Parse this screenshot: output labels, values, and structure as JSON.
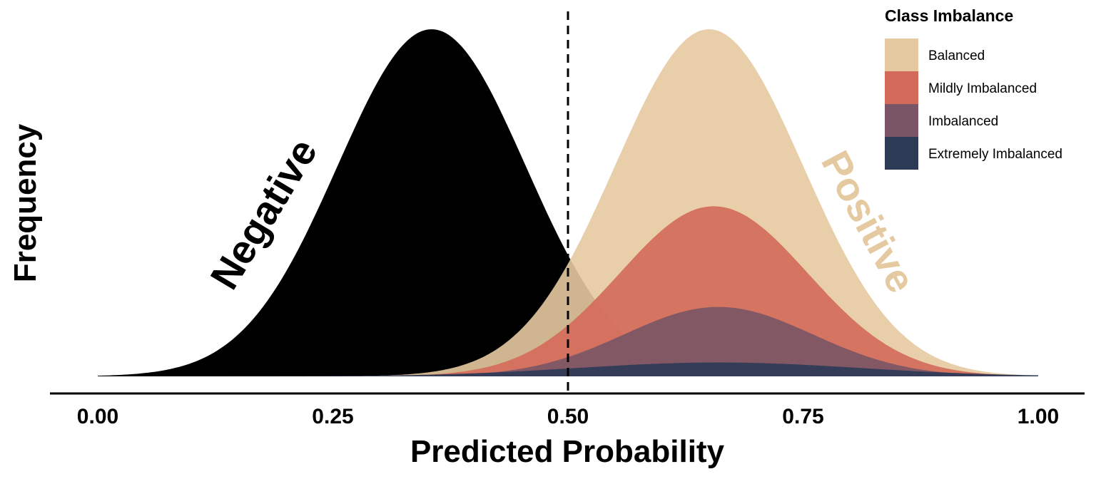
{
  "chart_data": {
    "type": "area",
    "title": "",
    "xlabel": "Predicted Probability",
    "ylabel": "Frequency",
    "xlim": [
      0,
      1
    ],
    "x_ticks": [
      "0.00",
      "0.25",
      "0.50",
      "0.75",
      "1.00"
    ],
    "threshold": 0.5,
    "threshold_style": "dashed",
    "grid": false,
    "y_ticks_shown": false,
    "annotations": [
      {
        "text": "Negative",
        "color": "#000000"
      },
      {
        "text": "Positive",
        "color": "#E5C9A0"
      }
    ],
    "negative_series": {
      "mean": 0.355,
      "sd": 0.1,
      "relative_peak": 1.0,
      "color": "#000000"
    },
    "legend": {
      "title": "Class Imbalance",
      "placement": "top-right",
      "entries": [
        {
          "name": "Balanced",
          "color": "#E5C9A0",
          "mean": 0.65,
          "sd": 0.1,
          "relative_peak": 1.0
        },
        {
          "name": "Mildly Imbalanced",
          "color": "#D46A5A",
          "mean": 0.655,
          "sd": 0.1,
          "relative_peak": 0.49
        },
        {
          "name": "Imbalanced",
          "color": "#7A5566",
          "mean": 0.66,
          "sd": 0.1,
          "relative_peak": 0.2
        },
        {
          "name": "Extremely Imbalanced",
          "color": "#2C3A55",
          "mean": 0.66,
          "sd": 0.15,
          "relative_peak": 0.04
        }
      ]
    }
  }
}
